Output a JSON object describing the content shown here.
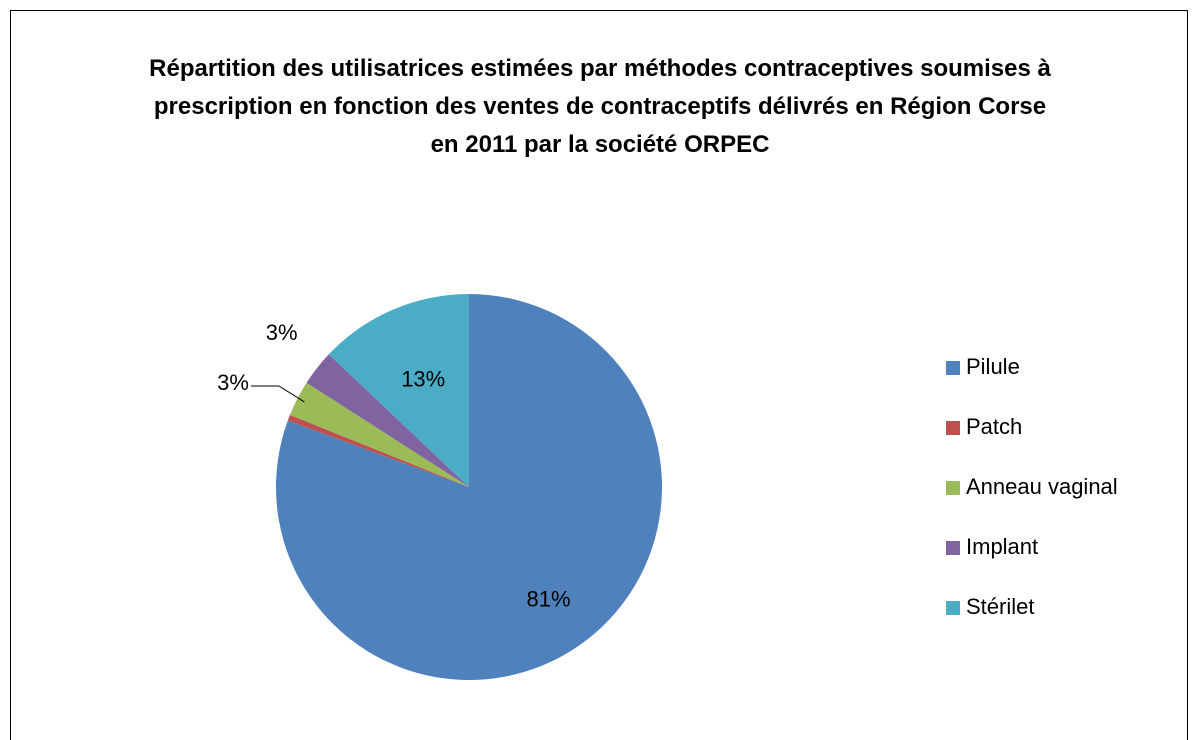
{
  "chart_data": {
    "type": "pie",
    "title": "Répartition des utilisatrices estimées par méthodes contraceptives soumises à prescription en fonction des ventes de contraceptifs délivrés en Région Corse en 2011 par la société ORPEC",
    "categories": [
      "Pilule",
      "Patch",
      "Anneau vaginal",
      "Implant",
      "Stérilet"
    ],
    "values": [
      81,
      0.5,
      3,
      3,
      13
    ],
    "value_labels": [
      "81%",
      null,
      "3%",
      "3%",
      "13%"
    ],
    "colors": [
      "#4f81bd",
      "#c0504d",
      "#9bbb59",
      "#8064a2",
      "#4bacc6"
    ],
    "legend": "right"
  }
}
